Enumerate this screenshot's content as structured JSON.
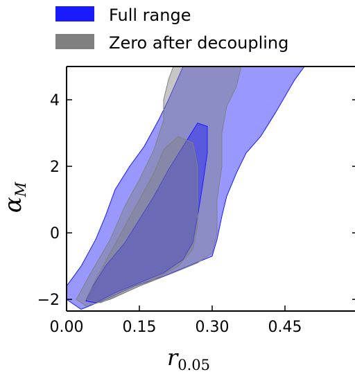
{
  "chart_data": {
    "type": "contour",
    "xlabel": "r",
    "xlabel_sub": "0.05",
    "ylabel": "α",
    "ylabel_sub": "M",
    "xlim": [
      0.0,
      0.6
    ],
    "ylim": [
      -2.35,
      5.0
    ],
    "xticks": [
      0.0,
      0.15,
      0.3,
      0.45
    ],
    "xtick_labels": [
      "0.00",
      "0.15",
      "0.30",
      "0.45"
    ],
    "yticks": [
      -2,
      0,
      2,
      4
    ],
    "ytick_labels": [
      "−2",
      "0",
      "2",
      "4"
    ],
    "legend_placement": "top-left, above plot",
    "series": [
      {
        "name": "Full range",
        "color": "#1a1aff",
        "contours": {
          "outer_95": [
            [
              0.0,
              -2.0
            ],
            [
              0.0,
              -1.6
            ],
            [
              0.03,
              -1.0
            ],
            [
              0.06,
              -0.2
            ],
            [
              0.08,
              0.5
            ],
            [
              0.1,
              1.3
            ],
            [
              0.13,
              2.0
            ],
            [
              0.16,
              2.6
            ],
            [
              0.19,
              3.4
            ],
            [
              0.21,
              4.0
            ],
            [
              0.225,
              4.5
            ],
            [
              0.24,
              5.0
            ],
            [
              0.49,
              5.0
            ],
            [
              0.47,
              4.6
            ],
            [
              0.45,
              4.1
            ],
            [
              0.43,
              3.6
            ],
            [
              0.4,
              2.9
            ],
            [
              0.37,
              2.4
            ],
            [
              0.35,
              1.8
            ],
            [
              0.33,
              1.1
            ],
            [
              0.32,
              0.5
            ],
            [
              0.31,
              -0.2
            ],
            [
              0.3,
              -0.7
            ],
            [
              0.25,
              -1.0
            ],
            [
              0.2,
              -1.3
            ],
            [
              0.14,
              -1.6
            ],
            [
              0.08,
              -2.0
            ],
            [
              0.03,
              -2.3
            ],
            [
              0.0,
              -2.0
            ]
          ],
          "inner_68": [
            [
              0.04,
              -2.05
            ],
            [
              0.05,
              -1.7
            ],
            [
              0.08,
              -1.0
            ],
            [
              0.12,
              -0.3
            ],
            [
              0.15,
              0.4
            ],
            [
              0.18,
              1.1
            ],
            [
              0.21,
              1.9
            ],
            [
              0.24,
              2.6
            ],
            [
              0.27,
              3.3
            ],
            [
              0.29,
              3.2
            ],
            [
              0.29,
              2.4
            ],
            [
              0.28,
              1.4
            ],
            [
              0.27,
              0.5
            ],
            [
              0.26,
              -0.3
            ],
            [
              0.24,
              -0.8
            ],
            [
              0.2,
              -1.2
            ],
            [
              0.15,
              -1.5
            ],
            [
              0.1,
              -1.8
            ],
            [
              0.06,
              -2.1
            ],
            [
              0.04,
              -2.05
            ]
          ]
        }
      },
      {
        "name": "Zero after decoupling",
        "color": "#808080",
        "contours": {
          "outer_95": [
            [
              0.02,
              -2.0
            ],
            [
              0.05,
              -1.2
            ],
            [
              0.09,
              -0.2
            ],
            [
              0.12,
              0.8
            ],
            [
              0.15,
              1.6
            ],
            [
              0.18,
              2.5
            ],
            [
              0.2,
              3.4
            ],
            [
              0.2,
              4.0
            ],
            [
              0.21,
              4.6
            ],
            [
              0.22,
              5.0
            ],
            [
              0.36,
              5.0
            ],
            [
              0.35,
              4.4
            ],
            [
              0.33,
              3.8
            ],
            [
              0.32,
              3.0
            ],
            [
              0.32,
              2.0
            ],
            [
              0.31,
              1.0
            ],
            [
              0.31,
              0.0
            ],
            [
              0.3,
              -0.6
            ],
            [
              0.27,
              -0.9
            ],
            [
              0.22,
              -1.2
            ],
            [
              0.15,
              -1.6
            ],
            [
              0.09,
              -2.0
            ],
            [
              0.04,
              -2.2
            ],
            [
              0.02,
              -2.0
            ]
          ],
          "inner_68": [
            [
              0.04,
              -2.0
            ],
            [
              0.06,
              -1.4
            ],
            [
              0.09,
              -0.6
            ],
            [
              0.12,
              0.2
            ],
            [
              0.15,
              1.0
            ],
            [
              0.18,
              1.8
            ],
            [
              0.2,
              2.5
            ],
            [
              0.23,
              2.9
            ],
            [
              0.26,
              2.7
            ],
            [
              0.27,
              2.0
            ],
            [
              0.27,
              1.0
            ],
            [
              0.27,
              0.2
            ],
            [
              0.26,
              -0.5
            ],
            [
              0.23,
              -1.0
            ],
            [
              0.18,
              -1.4
            ],
            [
              0.12,
              -1.8
            ],
            [
              0.07,
              -2.1
            ],
            [
              0.04,
              -2.0
            ]
          ]
        }
      }
    ]
  }
}
